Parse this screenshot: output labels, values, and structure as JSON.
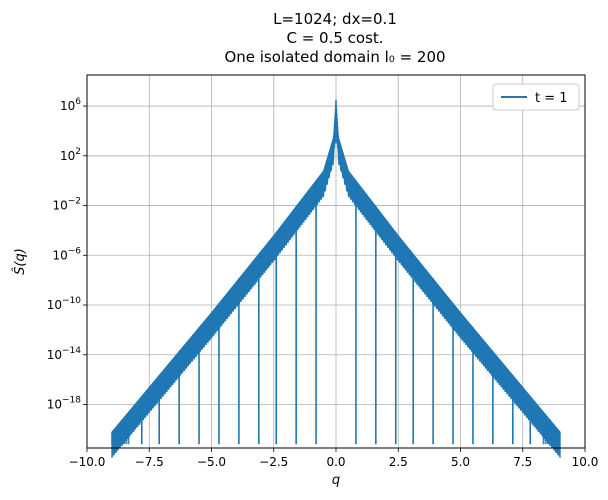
{
  "chart_data": {
    "type": "line",
    "title_lines": [
      "L=1024; dx=0.1",
      "C = 0.5 cost.",
      "One isolated domain l₀ = 200"
    ],
    "xlabel": "q",
    "ylabel": "Ŝ(q)",
    "xlim": [
      -10.0,
      10.0
    ],
    "ylim_log10": [
      -21.5,
      8.5
    ],
    "y_scale": "log",
    "x_ticks": [
      "−10.0",
      "−7.5",
      "−5.0",
      "−2.5",
      "0.0",
      "2.5",
      "5.0",
      "7.5",
      "10.0"
    ],
    "y_ticks": [
      {
        "base": "10",
        "exp": "6"
      },
      {
        "base": "10",
        "exp": "2"
      },
      {
        "base": "10",
        "exp": "−2"
      },
      {
        "base": "10",
        "exp": "−6"
      },
      {
        "base": "10",
        "exp": "−10"
      },
      {
        "base": "10",
        "exp": "−14"
      },
      {
        "base": "10",
        "exp": "−18"
      }
    ],
    "grid": true,
    "legend_position": "top-right",
    "series": [
      {
        "name": "t = 1",
        "color": "#1f77b4",
        "envelope_x": [
          -9.0,
          -7.5,
          -5.0,
          -2.5,
          -0.5,
          -0.1,
          0.0,
          0.1,
          0.5,
          2.5,
          5.0,
          7.5,
          9.0
        ],
        "envelope_y_log10": [
          -20.2,
          -16.6,
          -10.6,
          -4.4,
          0.8,
          3.5,
          6.5,
          3.5,
          0.8,
          -4.4,
          -10.6,
          -16.6,
          -20.2
        ],
        "lower_y_log10": -21.2,
        "deep_dips_q": [
          -8.6,
          -7.8,
          -7.1,
          -6.3,
          -5.5,
          -4.7,
          -3.9,
          -3.1,
          -2.4,
          -1.6,
          -0.8,
          0.8,
          1.6,
          2.4,
          3.1,
          3.9,
          4.7,
          5.5,
          6.3,
          7.1,
          7.8,
          8.6
        ]
      }
    ]
  }
}
